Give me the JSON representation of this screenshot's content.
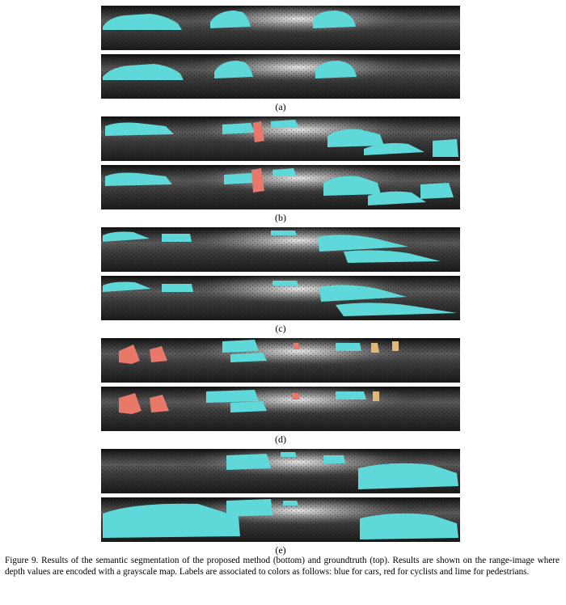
{
  "subfigures": [
    {
      "label": "(a)"
    },
    {
      "label": "(b)"
    },
    {
      "label": "(c)"
    },
    {
      "label": "(d)"
    },
    {
      "label": "(e)"
    }
  ],
  "caption": "Figure 9. Results of the semantic segmentation of the proposed method (bottom) and groundtruth (top). Results are shown on the range-image where depth values are encoded with a grayscale map. Labels are associated to colors as follows: blue for cars, red for cyclists and lime for pedestrians.",
  "colors": {
    "car": "#5ed8d8",
    "cyclist": "#e8786a",
    "pedestrian": "#e0b878",
    "background_dark": "#1e1e1e",
    "background_light": "#bdbdbd"
  }
}
